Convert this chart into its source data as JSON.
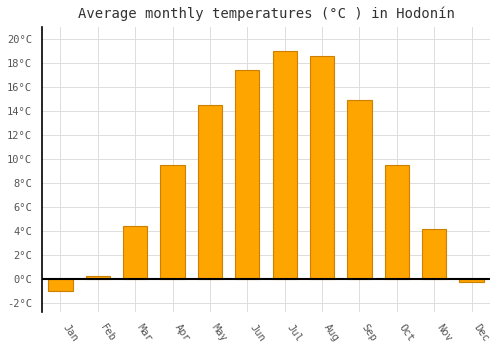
{
  "months": [
    "Jan",
    "Feb",
    "Mar",
    "Apr",
    "May",
    "Jun",
    "Jul",
    "Aug",
    "Sep",
    "Oct",
    "Nov",
    "Dec"
  ],
  "values": [
    -1.0,
    0.2,
    4.4,
    9.5,
    14.5,
    17.4,
    19.0,
    18.6,
    14.9,
    9.5,
    4.1,
    -0.3
  ],
  "bar_color": "#FFA500",
  "bar_edge_color": "#CC8000",
  "title": "Average monthly temperatures (°C ) in Hodonín",
  "title_fontsize": 10,
  "ylabel_ticks": [
    "-2°C",
    "0°C",
    "2°C",
    "4°C",
    "6°C",
    "8°C",
    "10°C",
    "12°C",
    "14°C",
    "16°C",
    "18°C",
    "20°C"
  ],
  "ytick_values": [
    -2,
    0,
    2,
    4,
    6,
    8,
    10,
    12,
    14,
    16,
    18,
    20
  ],
  "ylim": [
    -2.8,
    21.0
  ],
  "background_color": "#ffffff",
  "grid_color": "#dddddd",
  "zero_line_color": "#000000",
  "spine_color": "#000000",
  "tick_fontsize": 7.5,
  "bar_width": 0.65
}
